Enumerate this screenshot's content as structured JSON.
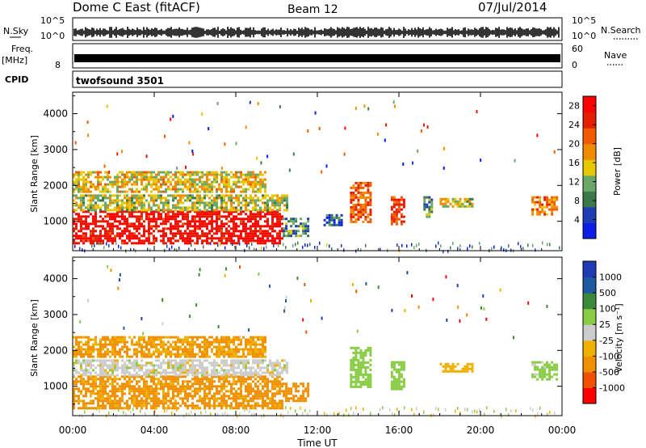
{
  "header": {
    "station": "Dome C East (fitACF)",
    "beam": "Beam 12",
    "date": "07/Jul/2014"
  },
  "strips": {
    "nsky_label": "N.Sky",
    "nsky_top": "10^5",
    "nsky_bottom": "10^0",
    "nsearch_label": "N.Search",
    "nsearch_top": "10^5",
    "nsearch_bottom": "10^0",
    "freq_label": "Freq.",
    "freq_unit": "[MHz]",
    "freq_tick": "8",
    "nave_label": "Nave",
    "nave_top": "60",
    "nave_bottom": "0",
    "cpid_label": "CPID",
    "cpid_value": "twofsound 3501"
  },
  "colors": {
    "power_scale": [
      "#0a1ee6",
      "#1e3cb4",
      "#3a7a4a",
      "#6aa86a",
      "#e6c800",
      "#f08c00",
      "#f05a00",
      "#e61e00",
      "#ff0000"
    ],
    "velocity_scale": [
      "#ff0000",
      "#f05000",
      "#f09000",
      "#f0b000",
      "#cccccc",
      "#88cc44",
      "#3a8a3a",
      "#1e5aa0",
      "#1e3cb4"
    ]
  },
  "chart_data": [
    {
      "type": "heatmap",
      "panel": "power",
      "xlabel": "Time UT",
      "ylabel": "Slant Range [km]",
      "xticks": [
        "00:00",
        "04:00",
        "08:00",
        "12:00",
        "16:00",
        "20:00",
        "00:00"
      ],
      "yticks": [
        1000,
        2000,
        3000,
        4000
      ],
      "xlim_hours": [
        0,
        24
      ],
      "ylim": [
        180,
        4600
      ],
      "colorbar": {
        "label": "Power [dB]",
        "ticks": [
          4,
          8,
          12,
          16,
          20,
          24,
          28
        ],
        "range": [
          0,
          30
        ]
      },
      "regions": [
        {
          "t": [
            0.0,
            10.3
          ],
          "r": [
            400,
            1300
          ],
          "value": 28
        },
        {
          "t": [
            0.0,
            10.5
          ],
          "r": [
            1300,
            1750
          ],
          "value": 14
        },
        {
          "t": [
            0.0,
            9.5
          ],
          "r": [
            1800,
            2400
          ],
          "value": 16
        },
        {
          "t": [
            10.3,
            11.6
          ],
          "r": [
            600,
            1100
          ],
          "value": 9
        },
        {
          "t": [
            12.3,
            13.2
          ],
          "r": [
            900,
            1200
          ],
          "value": 6
        },
        {
          "t": [
            13.6,
            14.6
          ],
          "r": [
            1000,
            2100
          ],
          "value": 22
        },
        {
          "t": [
            15.6,
            16.3
          ],
          "r": [
            900,
            1700
          ],
          "value": 24
        },
        {
          "t": [
            17.2,
            17.6
          ],
          "r": [
            1100,
            1700
          ],
          "value": 10
        },
        {
          "t": [
            18.0,
            19.6
          ],
          "r": [
            1400,
            1650
          ],
          "value": 14
        },
        {
          "t": [
            22.5,
            23.8
          ],
          "r": [
            1200,
            1700
          ],
          "value": 20
        }
      ]
    },
    {
      "type": "heatmap",
      "panel": "velocity",
      "xlabel": "Time UT",
      "ylabel": "Slant Range [km]",
      "xticks": [
        "00:00",
        "04:00",
        "08:00",
        "12:00",
        "16:00",
        "20:00",
        "00:00"
      ],
      "yticks": [
        1000,
        2000,
        3000,
        4000
      ],
      "xlim_hours": [
        0,
        24
      ],
      "ylim": [
        180,
        4600
      ],
      "colorbar": {
        "label": "Velocity [m s⁻¹]",
        "ticks": [
          1000,
          500,
          100,
          25,
          -25,
          -100,
          -500,
          -1000
        ]
      },
      "regions": [
        {
          "t": [
            0.0,
            10.3
          ],
          "r": [
            400,
            1300
          ],
          "value": -150
        },
        {
          "t": [
            0.0,
            10.5
          ],
          "r": [
            1300,
            1750
          ],
          "value": 0
        },
        {
          "t": [
            0.0,
            9.5
          ],
          "r": [
            1800,
            2400
          ],
          "value": -120
        },
        {
          "t": [
            10.3,
            11.6
          ],
          "r": [
            600,
            1100
          ],
          "value": -200
        },
        {
          "t": [
            13.6,
            14.6
          ],
          "r": [
            1000,
            2100
          ],
          "value": 60
        },
        {
          "t": [
            15.6,
            16.3
          ],
          "r": [
            900,
            1700
          ],
          "value": 60
        },
        {
          "t": [
            18.0,
            19.6
          ],
          "r": [
            1400,
            1650
          ],
          "value": -60
        },
        {
          "t": [
            22.5,
            23.8
          ],
          "r": [
            1200,
            1700
          ],
          "value": 50
        }
      ]
    }
  ]
}
